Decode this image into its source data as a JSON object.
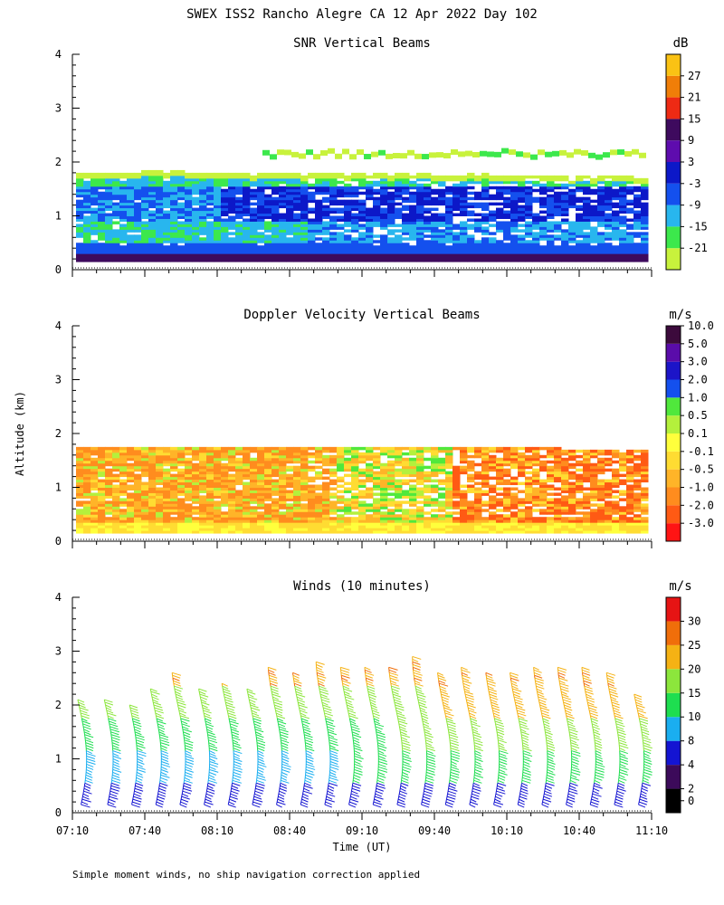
{
  "title": "SWEX ISS2 Rancho Alegre CA  12 Apr 2022 Day 102",
  "footnote": "Simple moment winds, no ship navigation correction applied",
  "colors": {
    "snr_scale": [
      "#c8f23c",
      "#3ce84c",
      "#28b6ee",
      "#1450ee",
      "#0c18c8",
      "#5e0cae",
      "#3e0a5e",
      "#ee2a14",
      "#f07e08",
      "#fac214"
    ],
    "doppler_scale": [
      "#ff1414",
      "#ff5a14",
      "#ff8c1e",
      "#ffb428",
      "#ffdc32",
      "#ffff3c",
      "#b4f03c",
      "#50e83c",
      "#1450ee",
      "#1c14c8",
      "#5a0caa",
      "#3c0a3c"
    ],
    "wind_scale": [
      "#000000",
      "#3c0a5a",
      "#1414d2",
      "#1aaef0",
      "#1ede50",
      "#8ce63c",
      "#f5b214",
      "#f06e0a",
      "#e61414"
    ]
  },
  "chart_data": [
    {
      "id": "snr",
      "type": "heatmap",
      "title": "SNR Vertical Beams",
      "xlabel": "",
      "ylabel": "",
      "xlim": [
        "07:10",
        "11:10"
      ],
      "ylim": [
        0,
        4
      ],
      "yticks": [
        "0",
        "1",
        "2",
        "3",
        "4"
      ],
      "colorbar": {
        "unit": "dB",
        "labels": [
          "-21",
          "-15",
          "-9",
          "-3",
          "3",
          "9",
          "15",
          "21",
          "27"
        ]
      }
    },
    {
      "id": "doppler",
      "type": "heatmap",
      "title": "Doppler Velocity Vertical Beams",
      "xlabel": "",
      "ylabel": "Altitude (km)",
      "xlim": [
        "07:10",
        "11:10"
      ],
      "ylim": [
        0,
        4
      ],
      "yticks": [
        "0",
        "1",
        "2",
        "3",
        "4"
      ],
      "colorbar": {
        "unit": "m/s",
        "labels": [
          "-3.0",
          "-2.0",
          "-1.0",
          "-0.5",
          "-0.1",
          "0.1",
          "0.5",
          "1.0",
          "2.0",
          "3.0",
          "5.0",
          "10.0"
        ]
      }
    },
    {
      "id": "winds",
      "type": "scatter",
      "title": "Winds (10 minutes)",
      "xlabel": "Time (UT)",
      "ylabel": "",
      "xlim": [
        "07:10",
        "11:10"
      ],
      "ylim": [
        0,
        4
      ],
      "yticks": [
        "0",
        "1",
        "2",
        "3",
        "4"
      ],
      "xticks": [
        "07:10",
        "07:40",
        "08:10",
        "08:40",
        "09:10",
        "09:40",
        "10:10",
        "10:40",
        "11:10"
      ],
      "colorbar": {
        "unit": "m/s",
        "labels": [
          "0",
          "2",
          "4",
          "8",
          "10",
          "15",
          "20",
          "25",
          "30"
        ]
      },
      "profiles": [
        {
          "time": "07:14",
          "top": 2.1
        },
        {
          "time": "07:25",
          "top": 2.1
        },
        {
          "time": "07:35",
          "top": 2.0
        },
        {
          "time": "07:45",
          "top": 2.3
        },
        {
          "time": "07:55",
          "top": 2.6
        },
        {
          "time": "08:05",
          "top": 2.3
        },
        {
          "time": "08:15",
          "top": 2.4
        },
        {
          "time": "08:25",
          "top": 2.3
        },
        {
          "time": "08:35",
          "top": 2.7
        },
        {
          "time": "08:45",
          "top": 2.6
        },
        {
          "time": "08:55",
          "top": 2.8
        },
        {
          "time": "09:05",
          "top": 2.7
        },
        {
          "time": "09:15",
          "top": 2.7
        },
        {
          "time": "09:25",
          "top": 2.7
        },
        {
          "time": "09:35",
          "top": 2.9
        },
        {
          "time": "09:45",
          "top": 2.6
        },
        {
          "time": "09:55",
          "top": 2.7
        },
        {
          "time": "10:05",
          "top": 2.6
        },
        {
          "time": "10:15",
          "top": 2.6
        },
        {
          "time": "10:25",
          "top": 2.7
        },
        {
          "time": "10:35",
          "top": 2.7
        },
        {
          "time": "10:45",
          "top": 2.7
        },
        {
          "time": "10:55",
          "top": 2.6
        },
        {
          "time": "11:05",
          "top": 2.2
        }
      ]
    }
  ]
}
